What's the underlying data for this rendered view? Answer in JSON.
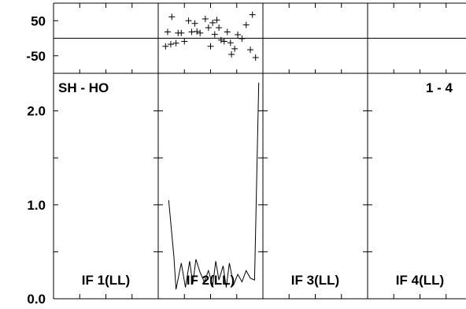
{
  "chart_data": {
    "type": "line",
    "title_left": "SH - HO",
    "title_right": "1 - 4",
    "panels": [
      "IF 1(LL)",
      "IF 2(LL)",
      "IF 3(LL)",
      "IF 4(LL)"
    ],
    "x_ticks_per_panel": 3,
    "upper": {
      "type": "scatter",
      "ylim": [
        -100,
        100
      ],
      "yticks": [
        50,
        -50
      ],
      "ytick_labels": [
        "50",
        "-50"
      ],
      "reference_line_y": 0,
      "panel_index": 1,
      "x": [
        0.07,
        0.09,
        0.12,
        0.13,
        0.17,
        0.19,
        0.22,
        0.25,
        0.29,
        0.32,
        0.35,
        0.37,
        0.4,
        0.45,
        0.48,
        0.5,
        0.52,
        0.54,
        0.56,
        0.58,
        0.6,
        0.63,
        0.66,
        0.69,
        0.7,
        0.73,
        0.76,
        0.8,
        0.84,
        0.88,
        0.9,
        0.93
      ],
      "y": [
        -23,
        18,
        -17,
        61,
        -14,
        15,
        15,
        -9,
        50,
        18,
        42,
        19,
        15,
        55,
        30,
        -23,
        44,
        11,
        52,
        30,
        -5,
        -9,
        18,
        -13,
        -46,
        -30,
        10,
        -1,
        38,
        -33,
        67,
        -55
      ]
    },
    "lower": {
      "type": "line",
      "ylim": [
        0,
        2.4
      ],
      "yticks": [
        0,
        1,
        2
      ],
      "ytick_labels": [
        "0.0",
        "1.0",
        "2.0"
      ],
      "panel_index": 1,
      "x": [
        0.1,
        0.15,
        0.17,
        0.22,
        0.26,
        0.3,
        0.33,
        0.36,
        0.4,
        0.44,
        0.48,
        0.52,
        0.55,
        0.58,
        0.62,
        0.65,
        0.68,
        0.72,
        0.76,
        0.8,
        0.84,
        0.88,
        0.92,
        0.96
      ],
      "y": [
        1.05,
        0.45,
        0.1,
        0.38,
        0.12,
        0.4,
        0.16,
        0.42,
        0.28,
        0.18,
        0.3,
        0.14,
        0.4,
        0.2,
        0.35,
        0.12,
        0.38,
        0.15,
        0.26,
        0.18,
        0.3,
        0.22,
        0.2,
        2.3
      ]
    }
  }
}
